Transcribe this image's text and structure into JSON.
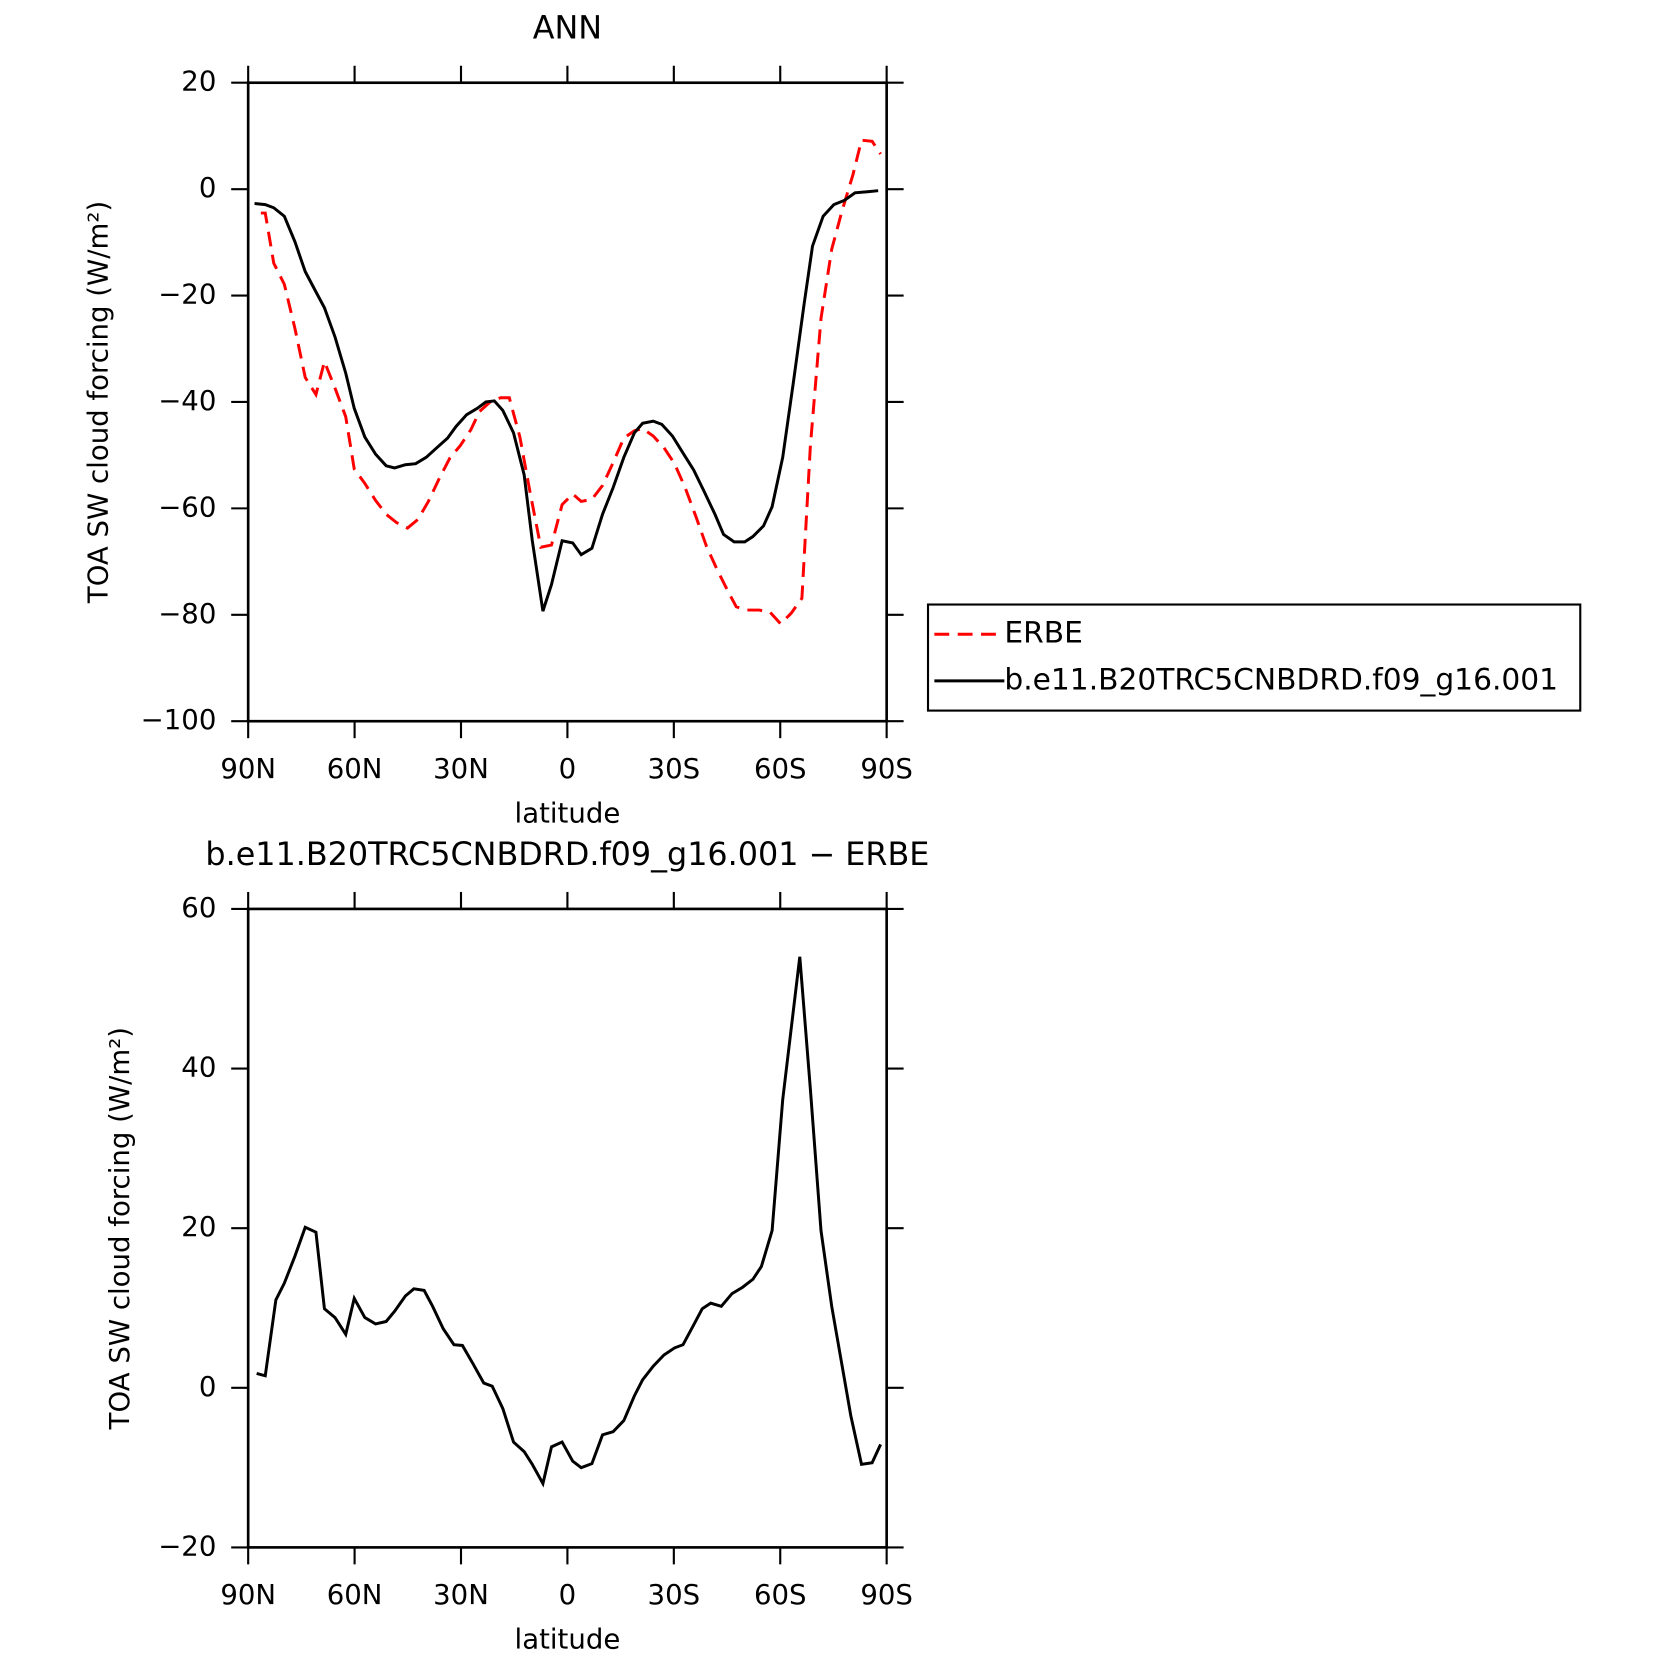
{
  "chart_data": [
    {
      "type": "line",
      "title": "ANN",
      "xlabel": "latitude",
      "ylabel": "TOA SW cloud forcing (W/m²)",
      "xlim": [
        90,
        -90
      ],
      "xticks": [
        {
          "value": 90,
          "label": "90N"
        },
        {
          "value": 60,
          "label": "60N"
        },
        {
          "value": 30,
          "label": "30N"
        },
        0,
        {
          "value": -30,
          "label": "30S"
        },
        {
          "value": -60,
          "label": "60S"
        },
        {
          "value": -90,
          "label": "90S"
        }
      ],
      "ylim": [
        -100,
        20
      ],
      "yticks": [
        {
          "value": -100,
          "label": "−100"
        },
        {
          "value": -80,
          "label": "−80"
        },
        {
          "value": -60,
          "label": "−60"
        },
        {
          "value": -40,
          "label": "−40"
        },
        {
          "value": -20,
          "label": "−20"
        },
        0,
        20
      ],
      "legend": "right",
      "series": [
        {
          "name": "ERBE",
          "color": "#ff0000",
          "style": "dashed",
          "x": [
            86.4,
            85.2,
            82.8,
            79.8,
            76.8,
            73.9,
            70.9,
            68.5,
            65.5,
            62.5,
            60.1,
            57.1,
            54.1,
            51.1,
            48.1,
            45.1,
            42.2,
            39.2,
            36.2,
            33.2,
            30.2,
            27.2,
            24.8,
            21.8,
            18.8,
            16.4,
            13.4,
            10.5,
            7.5,
            4.5,
            1.5,
            -1.5,
            -3.9,
            -6.9,
            -9.9,
            -12.9,
            -15.9,
            -18.9,
            -21.2,
            -24.2,
            -27.2,
            -30.2,
            -33.2,
            -36.2,
            -39.2,
            -42.2,
            -45.2,
            -47.6,
            -50.6,
            -54.1,
            -57.1,
            -60.1,
            -63.1,
            -66.1,
            -68.5,
            -71.5,
            -74.5,
            -77.5,
            -80.5,
            -82.9,
            -85.9,
            -88.3
          ],
          "values": [
            -4.5,
            -4.5,
            -13.9,
            -17.9,
            -26.2,
            -35.4,
            -38.6,
            -32.4,
            -37.4,
            -42.8,
            -52.6,
            -55.3,
            -58.5,
            -61.1,
            -62.7,
            -63.7,
            -62.1,
            -58.7,
            -54.5,
            -50.6,
            -48.2,
            -45.2,
            -41.8,
            -40.0,
            -39.2,
            -39.2,
            -46.6,
            -57.1,
            -67.3,
            -66.9,
            -59.3,
            -57.3,
            -58.7,
            -58.3,
            -55.7,
            -51.4,
            -46.8,
            -45.4,
            -45.0,
            -46.4,
            -48.6,
            -51.6,
            -56.1,
            -61.5,
            -67.1,
            -71.5,
            -75.5,
            -78.5,
            -79.1,
            -79.1,
            -79.5,
            -81.7,
            -79.7,
            -76.9,
            -48.2,
            -24.3,
            -11.3,
            -3.9,
            2.7,
            9.2,
            9.0,
            6.6
          ]
        },
        {
          "name": "b.e11.B20TRC5CNBDRD.f09_g16.001",
          "color": "#000000",
          "style": "solid",
          "x": [
            88.2,
            85.2,
            82.8,
            79.8,
            76.8,
            73.9,
            70.9,
            68.5,
            65.5,
            62.5,
            60.1,
            57.1,
            54.1,
            51.1,
            48.7,
            45.7,
            42.8,
            39.8,
            36.8,
            33.8,
            31.4,
            28.4,
            25.4,
            23.0,
            20.6,
            18.2,
            15.2,
            12.2,
            9.9,
            6.9,
            4.5,
            1.5,
            -1.5,
            -3.9,
            -6.9,
            -9.9,
            -12.9,
            -15.9,
            -18.9,
            -21.2,
            -24.2,
            -26.6,
            -29.6,
            -32.6,
            -35.6,
            -38.6,
            -41.6,
            -44.0,
            -47.0,
            -50.0,
            -52.3,
            -55.3,
            -57.7,
            -60.7,
            -63.7,
            -66.7,
            -69.1,
            -72.1,
            -75.1,
            -78.1,
            -81.1,
            -84.6,
            -87.6
          ],
          "values": [
            -2.7,
            -2.9,
            -3.5,
            -5.1,
            -9.9,
            -15.5,
            -19.3,
            -22.3,
            -27.8,
            -34.6,
            -41.2,
            -46.6,
            -49.8,
            -52.0,
            -52.4,
            -51.8,
            -51.6,
            -50.4,
            -48.6,
            -46.8,
            -44.6,
            -42.4,
            -41.2,
            -40.0,
            -39.8,
            -41.6,
            -45.8,
            -53.7,
            -66.1,
            -79.3,
            -74.3,
            -66.1,
            -66.5,
            -68.7,
            -67.5,
            -61.1,
            -56.1,
            -50.4,
            -45.8,
            -44.0,
            -43.6,
            -44.2,
            -46.4,
            -49.6,
            -52.8,
            -56.9,
            -61.1,
            -64.9,
            -66.3,
            -66.3,
            -65.3,
            -63.3,
            -59.7,
            -50.4,
            -36.4,
            -21.7,
            -10.7,
            -5.1,
            -2.9,
            -2.1,
            -0.7,
            -0.5,
            -0.3
          ]
        }
      ]
    },
    {
      "type": "line",
      "title": "b.e11.B20TRC5CNBDRD.f09_g16.001 − ERBE",
      "xlabel": "latitude",
      "ylabel": "TOA SW cloud forcing (W/m²)",
      "xlim": [
        90,
        -90
      ],
      "xticks": [
        {
          "value": 90,
          "label": "90N"
        },
        {
          "value": 60,
          "label": "60N"
        },
        {
          "value": 30,
          "label": "30N"
        },
        0,
        {
          "value": -30,
          "label": "30S"
        },
        {
          "value": -60,
          "label": "60S"
        },
        {
          "value": -90,
          "label": "90S"
        }
      ],
      "ylim": [
        -20,
        60
      ],
      "yticks": [
        {
          "value": -20,
          "label": "−20"
        },
        0,
        20,
        40,
        60
      ],
      "color": "#000000",
      "x": [
        87.6,
        85.2,
        82.2,
        79.8,
        76.8,
        73.9,
        70.9,
        68.5,
        65.5,
        62.5,
        60.1,
        57.1,
        54.1,
        51.1,
        48.7,
        45.7,
        43.3,
        40.4,
        38.0,
        35.0,
        32.0,
        29.6,
        26.6,
        23.6,
        21.2,
        18.2,
        15.2,
        12.2,
        9.9,
        6.9,
        4.5,
        1.5,
        -1.5,
        -3.9,
        -6.9,
        -9.9,
        -12.9,
        -15.9,
        -18.9,
        -21.2,
        -24.2,
        -27.2,
        -30.2,
        -32.6,
        -35.6,
        -38.0,
        -40.4,
        -43.4,
        -46.4,
        -49.4,
        -52.3,
        -54.7,
        -57.7,
        -60.7,
        -65.5,
        -68.5,
        -71.5,
        -74.5,
        -77.5,
        -79.9,
        -82.9,
        -85.9,
        -88.3
      ],
      "values": [
        1.8,
        1.5,
        11.0,
        13.1,
        16.5,
        20.1,
        19.5,
        9.9,
        8.8,
        6.7,
        11.2,
        8.8,
        8.0,
        8.3,
        9.6,
        11.5,
        12.4,
        12.2,
        10.2,
        7.4,
        5.4,
        5.3,
        3.0,
        0.6,
        0.2,
        -2.6,
        -6.8,
        -8.0,
        -9.6,
        -12.0,
        -7.4,
        -6.8,
        -9.2,
        -10.0,
        -9.5,
        -5.9,
        -5.5,
        -4.1,
        -1.0,
        1.0,
        2.7,
        4.1,
        5.0,
        5.4,
        7.9,
        9.9,
        10.6,
        10.2,
        11.8,
        12.6,
        13.6,
        15.2,
        19.7,
        36.1,
        54.0,
        37.4,
        19.7,
        10.2,
        2.6,
        -3.5,
        -9.6,
        -9.4,
        -7.1
      ]
    }
  ]
}
